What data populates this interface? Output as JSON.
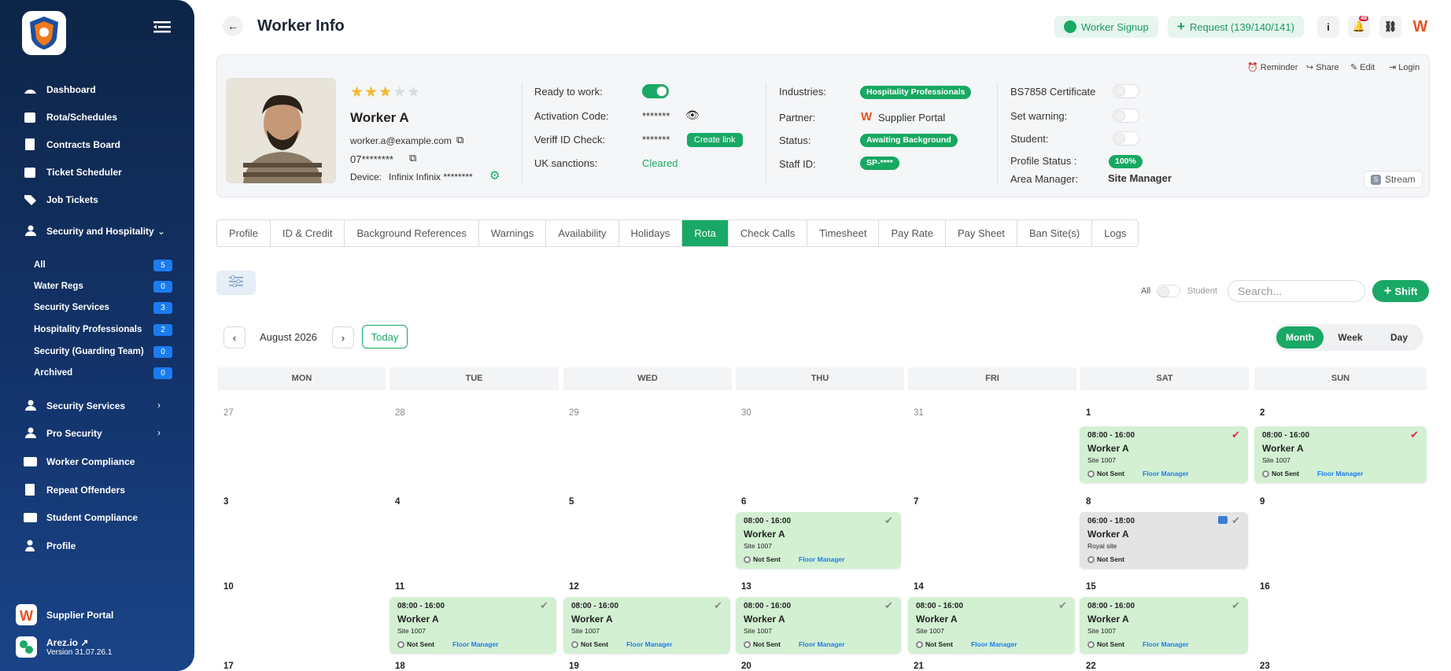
{
  "sidebar": {
    "items": [
      {
        "label": "Dashboard",
        "icon": "dashboard-icon"
      },
      {
        "label": "Rota/Schedules",
        "icon": "calendar-icon"
      },
      {
        "label": "Contracts Board",
        "icon": "document-icon"
      },
      {
        "label": "Ticket Scheduler",
        "icon": "calendar-icon"
      },
      {
        "label": "Job Tickets",
        "icon": "ticket-icon"
      },
      {
        "label": "Security and Hospitality",
        "icon": "group-icon"
      }
    ],
    "subitems": [
      {
        "label": "All",
        "count": "5"
      },
      {
        "label": "Water Regs",
        "count": "0"
      },
      {
        "label": "Security Services",
        "count": "3"
      },
      {
        "label": "Hospitality Professionals",
        "count": "2"
      },
      {
        "label": "Security (Guarding Team)",
        "count": "0"
      },
      {
        "label": "Archived",
        "count": "0"
      }
    ],
    "items2": [
      {
        "label": "Security Services"
      },
      {
        "label": "Pro Security"
      },
      {
        "label": "Worker Compliance"
      },
      {
        "label": "Repeat Offenders"
      },
      {
        "label": "Student Compliance"
      },
      {
        "label": "Profile"
      }
    ],
    "bottom": {
      "portal": "Supplier Portal",
      "brand": "Arez.io",
      "version": "Version 31.07.26.1"
    }
  },
  "header": {
    "title": "Worker Info",
    "signup": "Worker Signup",
    "request": "Request (139/140/141)",
    "badge": "48"
  },
  "profile": {
    "reminder": "Reminder",
    "share": "Share",
    "edit": "Edit",
    "login": "Login",
    "name": "Worker A",
    "email": "worker.a@example.com",
    "phone": "07********",
    "device_label": "Device:",
    "device": "Infinix Infinix ********",
    "rating": 3,
    "ready_label": "Ready to work:",
    "activation_label": "Activation Code:",
    "activation": "*******",
    "veriff_label": "Veriff ID Check:",
    "veriff": "*******",
    "create_link": "Create link",
    "uk_label": "UK sanctions:",
    "uk": "Cleared",
    "industries_label": "Industries:",
    "industries": "Hospitality Professionals",
    "partner_label": "Partner:",
    "partner": "Supplier Portal",
    "status_label": "Status:",
    "status": "Awaiting Background",
    "staff_label": "Staff ID:",
    "staff": "SP-****",
    "bs_label": "BS7858 Certificate",
    "warning_label": "Set warning:",
    "student_label": "Student:",
    "pstatus_label": "Profile Status :",
    "pstatus": "100%",
    "am_label": "Area Manager:",
    "am": "Site Manager",
    "stream": "Stream"
  },
  "tabs": [
    "Profile",
    "ID & Credit",
    "Background References",
    "Warnings",
    "Availability",
    "Holidays",
    "Rota",
    "Check Calls",
    "Timesheet",
    "Pay Rate",
    "Pay Sheet",
    "Ban Site(s)",
    "Logs"
  ],
  "toolbar": {
    "all": "All",
    "student": "Student",
    "search_placeholder": "Search...",
    "shift": "Shift"
  },
  "calendar": {
    "month": "August 2026",
    "today": "Today",
    "views": [
      "Month",
      "Week",
      "Day"
    ],
    "days": [
      "MON",
      "TUE",
      "WED",
      "THU",
      "FRI",
      "SAT",
      "SUN"
    ],
    "weeks": [
      [
        "27",
        "28",
        "29",
        "30",
        "31",
        "1",
        "2"
      ],
      [
        "3",
        "4",
        "5",
        "6",
        "7",
        "8",
        "9"
      ],
      [
        "10",
        "11",
        "12",
        "13",
        "14",
        "15",
        "16"
      ],
      [
        "17",
        "18",
        "19",
        "20",
        "21",
        "22",
        "23"
      ]
    ],
    "events": [
      {
        "time": "08:00 - 16:00",
        "name": "Worker A",
        "site": "Site 1007",
        "status": "Not Sent",
        "role": "Floor Manager"
      },
      {
        "time": "08:00 - 16:00",
        "name": "Worker A",
        "site": "Site 1007",
        "status": "Not Sent",
        "role": "Floor Manager"
      },
      {
        "time": "08:00 - 16:00",
        "name": "Worker A",
        "site": "Site 1007",
        "status": "Not Sent",
        "role": "Floor Manager"
      },
      {
        "time": "06:00 - 18:00",
        "name": "Worker A",
        "site": "Royal site",
        "status": "Not Sent",
        "role": ""
      },
      {
        "time": "08:00 - 16:00",
        "name": "Worker A",
        "site": "Site 1007",
        "status": "Not Sent",
        "role": "Floor Manager"
      },
      {
        "time": "08:00 - 16:00",
        "name": "Worker A",
        "site": "Site 1007",
        "status": "Not Sent",
        "role": "Floor Manager"
      },
      {
        "time": "08:00 - 16:00",
        "name": "Worker A",
        "site": "Site 1007",
        "status": "Not Sent",
        "role": "Floor Manager"
      },
      {
        "time": "08:00 - 16:00",
        "name": "Worker A",
        "site": "Site 1007",
        "status": "Not Sent",
        "role": "Floor Manager"
      },
      {
        "time": "08:00 - 16:00",
        "name": "Worker A",
        "site": "Site 1007",
        "status": "Not Sent",
        "role": "Floor Manager"
      }
    ]
  }
}
